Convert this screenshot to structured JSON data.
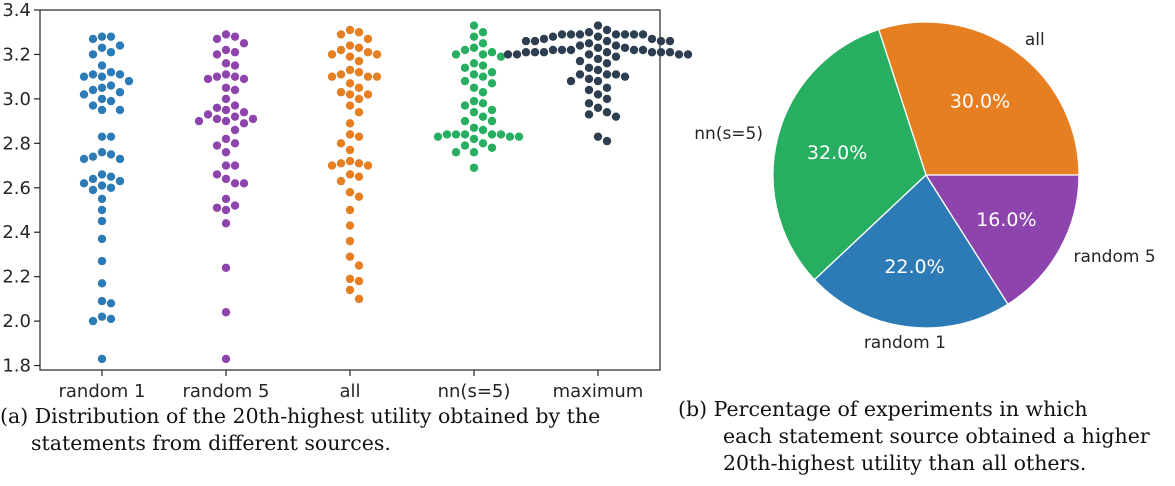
{
  "chart_data": [
    {
      "type": "scatter",
      "subtype": "swarm",
      "categories": [
        "random 1",
        "random 5",
        "all",
        "nn(s=5)",
        "maximum"
      ],
      "yticks": [
        "1.8",
        "2.0",
        "2.2",
        "2.4",
        "2.6",
        "2.8",
        "3.0",
        "3.2",
        "3.4"
      ],
      "ylim": [
        1.78,
        3.4
      ],
      "grid": false,
      "series": [
        {
          "category": "random 1",
          "color": "#2c7bb6",
          "values": [
            3.28,
            3.28,
            3.27,
            3.24,
            3.23,
            3.21,
            3.2,
            3.15,
            3.12,
            3.11,
            3.11,
            3.1,
            3.1,
            3.08,
            3.06,
            3.05,
            3.04,
            3.03,
            3.02,
            3.0,
            2.99,
            2.97,
            2.95,
            2.95,
            2.83,
            2.83,
            2.76,
            2.75,
            2.74,
            2.73,
            2.73,
            2.66,
            2.65,
            2.64,
            2.63,
            2.62,
            2.61,
            2.6,
            2.59,
            2.55,
            2.5,
            2.45,
            2.37,
            2.27,
            2.17,
            2.09,
            2.08,
            2.02,
            2.01,
            2.0,
            1.83
          ]
        },
        {
          "category": "random 5",
          "color": "#8e44ad",
          "values": [
            3.29,
            3.28,
            3.27,
            3.25,
            3.22,
            3.21,
            3.2,
            3.16,
            3.15,
            3.11,
            3.1,
            3.1,
            3.09,
            3.09,
            3.05,
            3.04,
            3.0,
            2.97,
            2.96,
            2.95,
            2.94,
            2.93,
            2.92,
            2.91,
            2.91,
            2.9,
            2.9,
            2.89,
            2.86,
            2.82,
            2.8,
            2.79,
            2.76,
            2.7,
            2.7,
            2.66,
            2.64,
            2.62,
            2.62,
            2.55,
            2.52,
            2.51,
            2.5,
            2.44,
            2.24,
            2.04,
            1.83
          ]
        },
        {
          "category": "all",
          "color": "#e67e22",
          "values": [
            3.31,
            3.3,
            3.29,
            3.27,
            3.24,
            3.23,
            3.22,
            3.21,
            3.2,
            3.2,
            3.19,
            3.17,
            3.13,
            3.12,
            3.11,
            3.1,
            3.1,
            3.1,
            3.07,
            3.05,
            3.03,
            3.02,
            3.02,
            3.0,
            2.97,
            2.94,
            2.89,
            2.84,
            2.83,
            2.8,
            2.77,
            2.72,
            2.71,
            2.71,
            2.7,
            2.7,
            2.66,
            2.65,
            2.63,
            2.58,
            2.56,
            2.5,
            2.43,
            2.36,
            2.29,
            2.25,
            2.19,
            2.18,
            2.14,
            2.1
          ]
        },
        {
          "category": "nn(s=5)",
          "color": "#27ae60",
          "values": [
            3.33,
            3.3,
            3.28,
            3.25,
            3.23,
            3.22,
            3.21,
            3.2,
            3.2,
            3.19,
            3.16,
            3.15,
            3.14,
            3.12,
            3.11,
            3.1,
            3.08,
            3.07,
            3.05,
            3.03,
            2.99,
            2.98,
            2.97,
            2.95,
            2.94,
            2.92,
            2.9,
            2.9,
            2.87,
            2.86,
            2.84,
            2.84,
            2.84,
            2.84,
            2.84,
            2.83,
            2.83,
            2.83,
            2.82,
            2.8,
            2.79,
            2.78,
            2.76,
            2.76,
            2.69
          ]
        },
        {
          "category": "maximum",
          "color": "#2c3e50",
          "values": [
            3.33,
            3.31,
            3.3,
            3.29,
            3.29,
            3.29,
            3.29,
            3.29,
            3.29,
            3.29,
            3.28,
            3.28,
            3.27,
            3.27,
            3.26,
            3.26,
            3.26,
            3.26,
            3.26,
            3.25,
            3.24,
            3.24,
            3.23,
            3.23,
            3.22,
            3.22,
            3.22,
            3.22,
            3.22,
            3.21,
            3.21,
            3.21,
            3.21,
            3.21,
            3.21,
            3.21,
            3.2,
            3.2,
            3.2,
            3.2,
            3.2,
            3.19,
            3.18,
            3.17,
            3.16,
            3.14,
            3.13,
            3.11,
            3.11,
            3.11,
            3.1,
            3.09,
            3.08,
            3.08,
            3.05,
            3.04,
            3.02,
            3.0,
            2.98,
            2.96,
            2.94,
            2.93,
            2.92,
            2.83,
            2.81
          ]
        }
      ]
    },
    {
      "type": "pie",
      "slices": [
        {
          "label": "all",
          "value": 30.0,
          "pct": "30.0%",
          "color": "#e67e22"
        },
        {
          "label": "nn(s=5)",
          "value": 32.0,
          "pct": "32.0%",
          "color": "#27ae60"
        },
        {
          "label": "random 1",
          "value": 22.0,
          "pct": "22.0%",
          "color": "#2c7bb6"
        },
        {
          "label": "random 5",
          "value": 16.0,
          "pct": "16.0%",
          "color": "#8e44ad"
        }
      ],
      "start_angle_deg": 0,
      "direction": "counterclockwise",
      "edge_color": "#ffffff"
    }
  ],
  "captions": {
    "a_line1": "(a)  Distribution of the 20th-highest utility obtained by the",
    "a_line2": "statements from different sources.",
    "b_line1": "(b) Percentage   of   experiments   in   which",
    "b_line2": "each statement source obtained a higher",
    "b_line3": "20th-highest utility than all others."
  }
}
